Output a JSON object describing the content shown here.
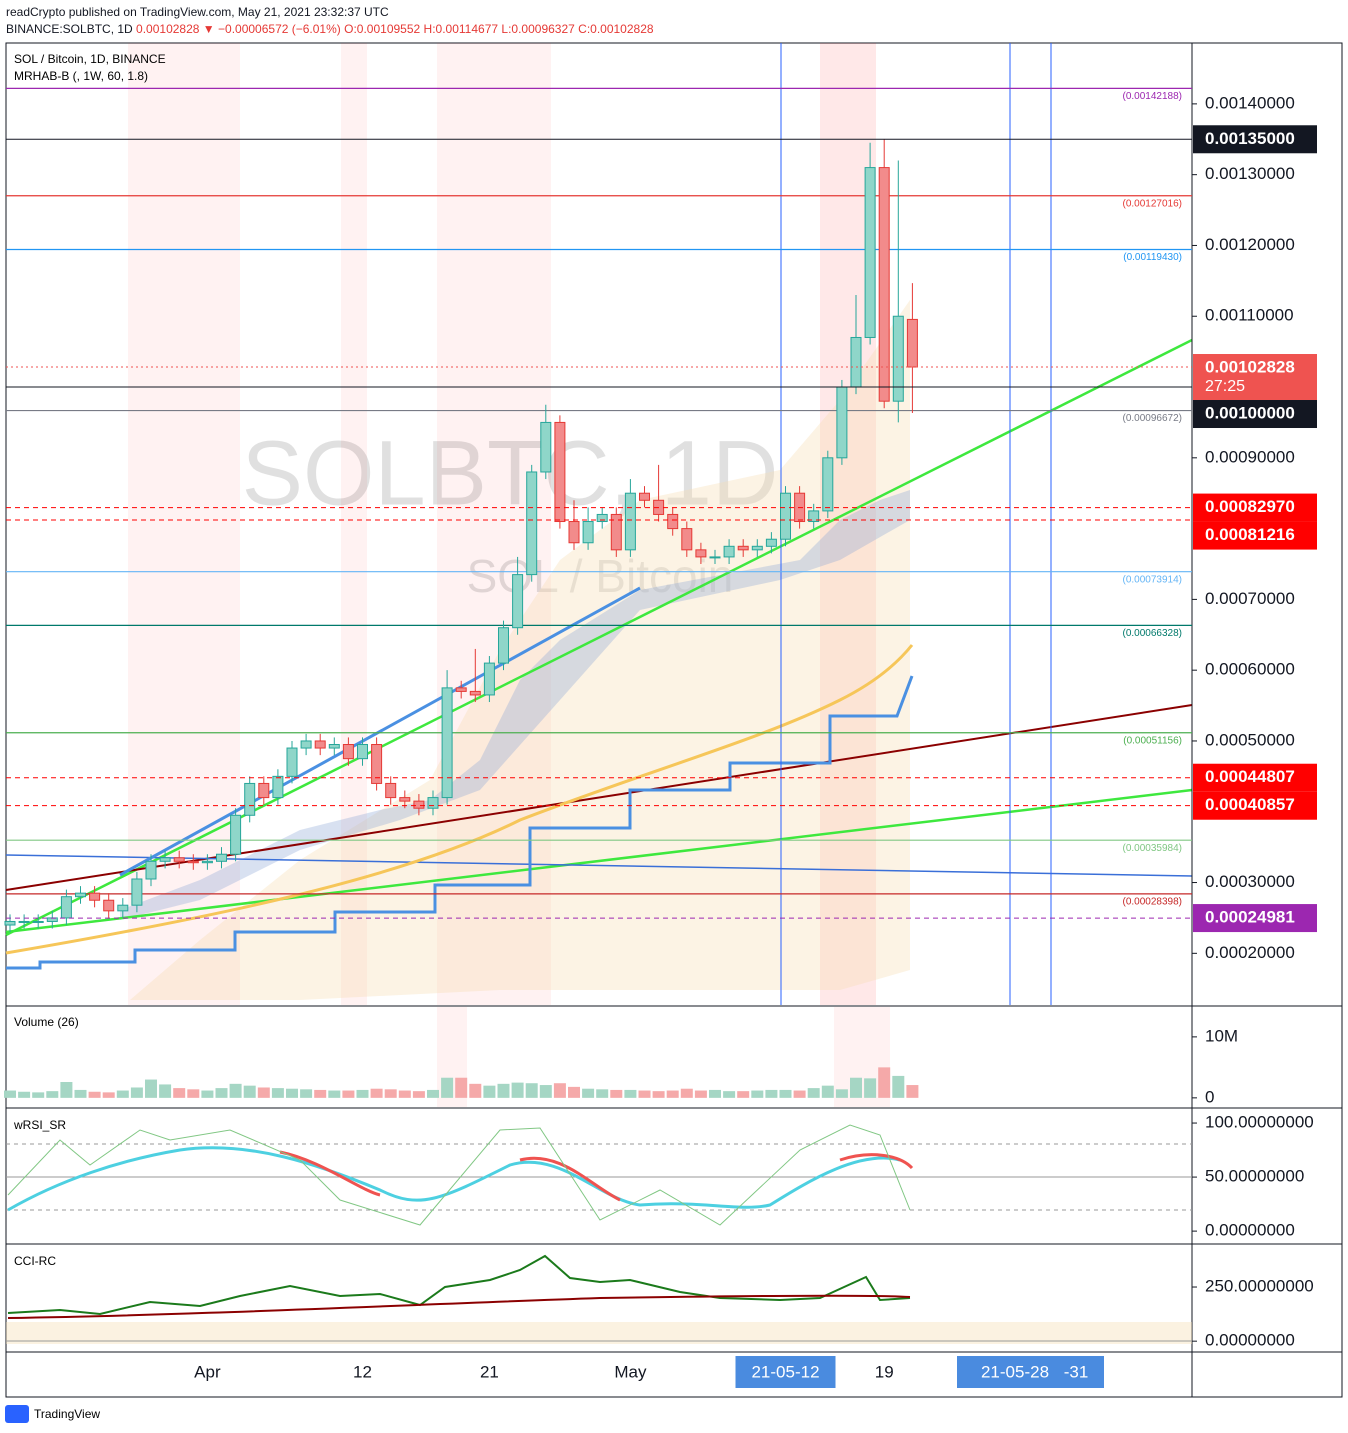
{
  "header": {
    "publisher": "readCrypto published on TradingView.com, May 21, 2021 23:32:37 UTC",
    "symbol": "BINANCE:SOLBTC, 1D",
    "last": "0.00102828",
    "change": "▼ −0.00006572 (−6.01%)",
    "ohlc": [
      "O:0.00109552",
      "H:0.00114677",
      "L:0.00096327",
      "C:0.00102828"
    ]
  },
  "brand": "TradingView",
  "chart_data": [
    {
      "type": "candlestick",
      "title": "SOL / Bitcoin, 1D, BINANCE",
      "indicator": "MRHAB-B (, 1W, 60, 1.8)",
      "watermark": "SOLBTC, 1D",
      "watermark_sub": "SOL / Bitcoin",
      "categories": [
        null,
        null,
        null,
        null,
        null,
        null,
        null,
        null,
        null,
        null,
        null,
        null,
        null,
        null,
        "Apr",
        null,
        null,
        null,
        null,
        null,
        null,
        null,
        null,
        null,
        null,
        "12",
        null,
        null,
        null,
        null,
        null,
        null,
        null,
        null,
        "21",
        null,
        null,
        null,
        null,
        null,
        null,
        null,
        null,
        null,
        "May",
        null,
        null,
        null,
        null,
        null,
        null,
        null,
        null,
        null,
        null,
        "21-05-12",
        null,
        null,
        null,
        null,
        null,
        null,
        "19",
        null,
        null
      ],
      "marker_labels": [
        "21-05-28",
        "-31"
      ],
      "open": [
        0.00024,
        0.000245,
        0.000245,
        0.000245,
        0.00025,
        0.00028,
        0.000285,
        0.000275,
        0.00026,
        0.000268,
        0.000305,
        0.00033,
        0.000335,
        0.00033,
        0.000328,
        0.00033,
        0.00034,
        0.000395,
        0.00044,
        0.00042,
        0.00045,
        0.00049,
        0.0005,
        0.00049,
        0.000495,
        0.000475,
        0.000495,
        0.00044,
        0.00042,
        0.000415,
        0.000405,
        0.00042,
        0.000575,
        0.00057,
        0.000565,
        0.00061,
        0.00066,
        0.000735,
        0.00088,
        0.00095,
        0.00081,
        0.00078,
        0.00081,
        0.00082,
        0.00077,
        0.00085,
        0.00084,
        0.00082,
        0.0008,
        0.00077,
        0.00076,
        0.00076,
        0.000775,
        0.00077,
        0.000775,
        0.000785,
        0.00085,
        0.00081,
        0.000825,
        0.0009,
        0.001,
        0.00107,
        0.00131,
        0.00098,
        0.00109552
      ],
      "high": [
        0.000255,
        0.000255,
        0.000255,
        0.00026,
        0.00029,
        0.000295,
        0.000295,
        0.000285,
        0.000278,
        0.000315,
        0.00034,
        0.000345,
        0.000345,
        0.00034,
        0.00034,
        0.00035,
        0.000405,
        0.00045,
        0.00045,
        0.00046,
        0.0005,
        0.00051,
        0.00051,
        0.000505,
        0.000505,
        0.000505,
        0.000505,
        0.00045,
        0.00043,
        0.000425,
        0.00043,
        0.0006,
        0.000585,
        0.00063,
        0.00062,
        0.00067,
        0.00076,
        0.00089,
        0.000975,
        0.00096,
        0.00084,
        0.00083,
        0.00083,
        0.00083,
        0.00087,
        0.00086,
        0.00089,
        0.00083,
        0.00081,
        0.00078,
        0.00077,
        0.000785,
        0.000785,
        0.000785,
        0.000795,
        0.00086,
        0.00086,
        0.000835,
        0.00091,
        0.00101,
        0.00113,
        0.001345,
        0.00135,
        0.00132,
        0.00114677
      ],
      "low": [
        0.00023,
        0.000235,
        0.000235,
        0.000235,
        0.00024,
        0.00027,
        0.000265,
        0.00025,
        0.00025,
        0.000258,
        0.000295,
        0.00032,
        0.00032,
        0.000318,
        0.000318,
        0.00032,
        0.00033,
        0.000385,
        0.00041,
        0.00041,
        0.00044,
        0.00048,
        0.00048,
        0.00048,
        0.000465,
        0.000465,
        0.00043,
        0.00041,
        0.000405,
        0.000395,
        0.000395,
        0.00041,
        0.00056,
        0.000555,
        0.000555,
        0.0006,
        0.00065,
        0.000725,
        0.00087,
        0.0008,
        0.00077,
        0.00077,
        0.0008,
        0.00076,
        0.00076,
        0.00083,
        0.00081,
        0.00079,
        0.00076,
        0.00075,
        0.00075,
        0.00075,
        0.00076,
        0.00076,
        0.000765,
        0.000775,
        0.0008,
        0.0008,
        0.000815,
        0.00089,
        0.00099,
        0.00106,
        0.00097,
        0.00095,
        0.00096327
      ],
      "close": [
        0.000245,
        0.000245,
        0.000245,
        0.00025,
        0.00028,
        0.000285,
        0.000275,
        0.00026,
        0.000268,
        0.000305,
        0.00033,
        0.000335,
        0.00033,
        0.000328,
        0.00033,
        0.00034,
        0.000395,
        0.00044,
        0.00042,
        0.00045,
        0.00049,
        0.0005,
        0.00049,
        0.000495,
        0.000475,
        0.000495,
        0.00044,
        0.00042,
        0.000415,
        0.000405,
        0.00042,
        0.000575,
        0.00057,
        0.000565,
        0.00061,
        0.00066,
        0.000735,
        0.00088,
        0.00095,
        0.00081,
        0.00078,
        0.00081,
        0.00082,
        0.00077,
        0.00085,
        0.00084,
        0.00082,
        0.0008,
        0.00077,
        0.00076,
        0.00076,
        0.000775,
        0.00077,
        0.000775,
        0.000785,
        0.00085,
        0.00081,
        0.000825,
        0.0009,
        0.001,
        0.00107,
        0.00131,
        0.00098,
        0.0011,
        0.00102828
      ],
      "up_color": "#8fd6c9",
      "down_color": "#f28b8b",
      "up_border": "#26a69a",
      "down_border": "#e53935",
      "ylim": [
        0.000127,
        0.001486
      ],
      "yticks": [
        {
          "value": 0.0014,
          "label": "0.00140000"
        },
        {
          "value": 0.0013,
          "label": "0.00130000"
        },
        {
          "value": 0.0012,
          "label": "0.00120000"
        },
        {
          "value": 0.0011,
          "label": "0.00110000"
        },
        {
          "value": 0.0009,
          "label": "0.00090000"
        },
        {
          "value": 0.0007,
          "label": "0.00070000"
        },
        {
          "value": 0.0006,
          "label": "0.00060000"
        },
        {
          "value": 0.0005,
          "label": "0.00050000"
        },
        {
          "value": 0.0003,
          "label": "0.00030000"
        },
        {
          "value": 0.0002,
          "label": "0.00020000"
        }
      ],
      "levels": [
        {
          "value": 0.00142188,
          "label": "(0.00142188)",
          "color": "#9c27b0"
        },
        {
          "value": 0.00127016,
          "label": "(0.00127016)",
          "color": "#e53935"
        },
        {
          "value": 0.0011943,
          "label": "(0.00119430)",
          "color": "#2196f3"
        },
        {
          "value": 0.00096672,
          "label": "(0.00096672)",
          "color": "#787b86"
        },
        {
          "value": 0.00073914,
          "label": "(0.00073914)",
          "color": "#64b5f6"
        },
        {
          "value": 0.00066328,
          "label": "(0.00066328)",
          "color": "#00796b"
        },
        {
          "value": 0.00051156,
          "label": "(0.00051156)",
          "color": "#4caf50"
        },
        {
          "value": 0.00035984,
          "label": "(0.00035984)",
          "color": "#81c784"
        },
        {
          "value": 0.00028398,
          "label": "(0.00028398)",
          "color": "#c62828"
        }
      ],
      "price_boxes": [
        {
          "value": 0.00135,
          "label": "0.00135000",
          "color": "#131722",
          "line": "solid"
        },
        {
          "value": 0.00102828,
          "label": "0.00102828",
          "color": "#ef5350",
          "line": "dotted"
        },
        {
          "value": 0.001,
          "label": "0.00100000",
          "color": "#131722",
          "line": "solid"
        },
        {
          "value": 0.0008297,
          "label": "0.00082970",
          "color": "#ff0000",
          "line": "dashed"
        },
        {
          "value": 0.00081216,
          "label": "0.00081216",
          "color": "#ff0000",
          "line": "dashed"
        },
        {
          "value": 0.00044807,
          "label": "0.00044807",
          "color": "#ff0000",
          "line": "dashed"
        },
        {
          "value": 0.00040857,
          "label": "0.00040857",
          "color": "#ff0000",
          "line": "dashed"
        },
        {
          "value": 0.00024981,
          "label": "0.00024981",
          "color": "#9c27b0",
          "line": "dashed"
        }
      ],
      "countdown": "27:25"
    },
    {
      "type": "volume",
      "title": "Volume (26)",
      "values": [
        1200000.0,
        1000000.0,
        900000.0,
        1100000.0,
        2600000.0,
        1300000.0,
        1000000.0,
        900000.0,
        1200000.0,
        1700000.0,
        3000000.0,
        2200000.0,
        1600000.0,
        1400000.0,
        1200000.0,
        1600000.0,
        2300000.0,
        2000000.0,
        1700000.0,
        1600000.0,
        1500000.0,
        1400000.0,
        1300000.0,
        1200000.0,
        1200000.0,
        1300000.0,
        1500000.0,
        1400000.0,
        1200000.0,
        1100000.0,
        1300000.0,
        3300000.0,
        3300000.0,
        2300000.0,
        2000000.0,
        2300000.0,
        2500000.0,
        2400000.0,
        2100000.0,
        2400000.0,
        1800000.0,
        1500000.0,
        1400000.0,
        1300000.0,
        1300000.0,
        1200000.0,
        1100000.0,
        1200000.0,
        1500000.0,
        1200000.0,
        1300000.0,
        1100000.0,
        1100000.0,
        1200000.0,
        1300000.0,
        1300000.0,
        1200000.0,
        1600000.0,
        2000000.0,
        1400000.0,
        3300000.0,
        3200000.0,
        5000000.0,
        3600000.0,
        2100000.0
      ],
      "up_color": "#a5d6c4",
      "down_color": "#f5a9a9",
      "ylim": [
        -1500000,
        14900000
      ],
      "yticks": [
        {
          "value": 10000000,
          "label": "10M"
        },
        0
      ]
    },
    {
      "type": "indicator",
      "title": "wRSI_SR",
      "ylim": [
        -11,
        113
      ],
      "yticks": [
        {
          "value": 100,
          "label": "100.00000000"
        },
        {
          "value": 50,
          "label": "50.00000000"
        },
        {
          "value": 0,
          "label": "0.00000000"
        }
      ]
    },
    {
      "type": "indicator",
      "title": "CCI-RC",
      "ylim": [
        -50,
        444
      ],
      "yticks": [
        {
          "value": 250,
          "label": "250.00000000"
        },
        {
          "value": 0,
          "label": "0.00000000"
        }
      ]
    }
  ]
}
